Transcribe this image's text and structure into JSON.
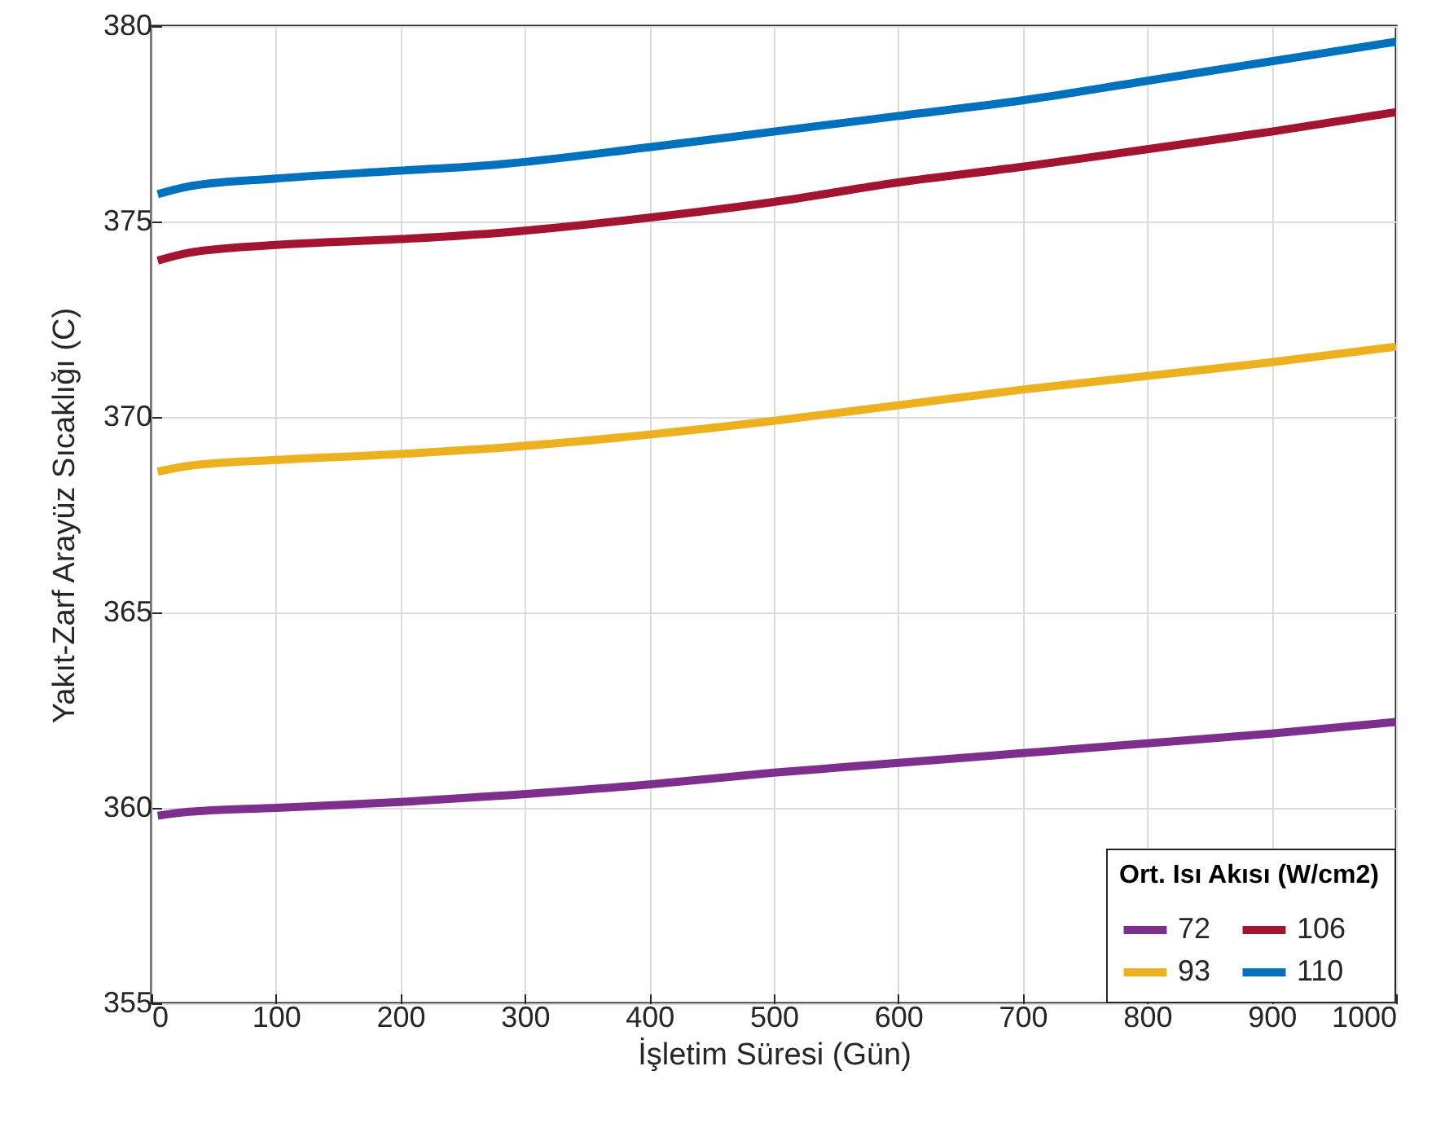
{
  "chart_data": {
    "type": "line",
    "xlabel": "İşletim Süresi (Gün)",
    "ylabel": "Yakıt-Zarf Arayüz Sıcaklığı (C)",
    "legend_title": "Ort. Isı Akısı (W/cm2)",
    "x": [
      5,
      30,
      100,
      200,
      275,
      400,
      500,
      600,
      700,
      800,
      900,
      1000
    ],
    "series": [
      {
        "name": "72",
        "color": "#7e2f8e",
        "values": [
          359.8,
          359.9,
          360.0,
          360.15,
          360.3,
          360.6,
          360.9,
          361.15,
          361.4,
          361.65,
          361.9,
          362.2
        ]
      },
      {
        "name": "93",
        "color": "#edb120",
        "values": [
          368.6,
          368.75,
          368.9,
          369.05,
          369.2,
          369.55,
          369.9,
          370.3,
          370.7,
          371.05,
          371.4,
          371.8
        ]
      },
      {
        "name": "106",
        "color": "#a2142f",
        "values": [
          374.0,
          374.2,
          374.4,
          374.55,
          374.7,
          375.1,
          375.5,
          376.0,
          376.4,
          376.85,
          377.3,
          377.8
        ]
      },
      {
        "name": "110",
        "color": "#0072bd",
        "values": [
          375.7,
          375.9,
          376.1,
          376.3,
          376.45,
          376.9,
          377.3,
          377.7,
          378.1,
          378.6,
          379.1,
          379.6
        ]
      }
    ],
    "xlim": [
      0,
      1000
    ],
    "xticks": [
      0,
      100,
      200,
      300,
      400,
      500,
      600,
      700,
      800,
      900,
      1000
    ],
    "ylim": [
      355,
      380
    ],
    "yticks": [
      355,
      360,
      365,
      370,
      375,
      380
    ],
    "grid": true,
    "legend": "bottom right",
    "marker": "none",
    "line_style": "solid"
  }
}
